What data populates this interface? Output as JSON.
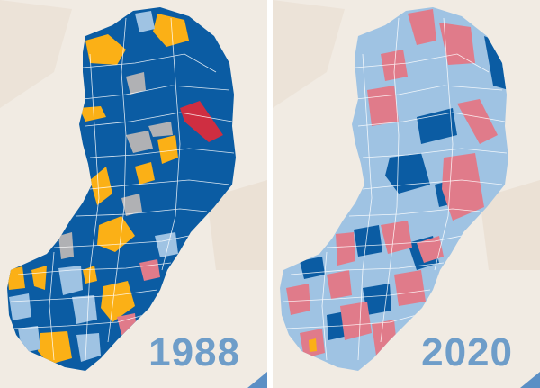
{
  "maps": [
    {
      "year": "1988",
      "colors": {
        "dark_blue": "#0b5ca3",
        "light_blue": "#9fc3e3",
        "orange": "#fbb016",
        "gray": "#b0b1b4",
        "red": "#cf2e41",
        "pink": "#e07b8a"
      }
    },
    {
      "year": "2020",
      "colors": {
        "dark_blue": "#0b5ca3",
        "light_blue": "#9fc3e3",
        "pink": "#e07b8a",
        "orange": "#fbb016"
      }
    }
  ]
}
